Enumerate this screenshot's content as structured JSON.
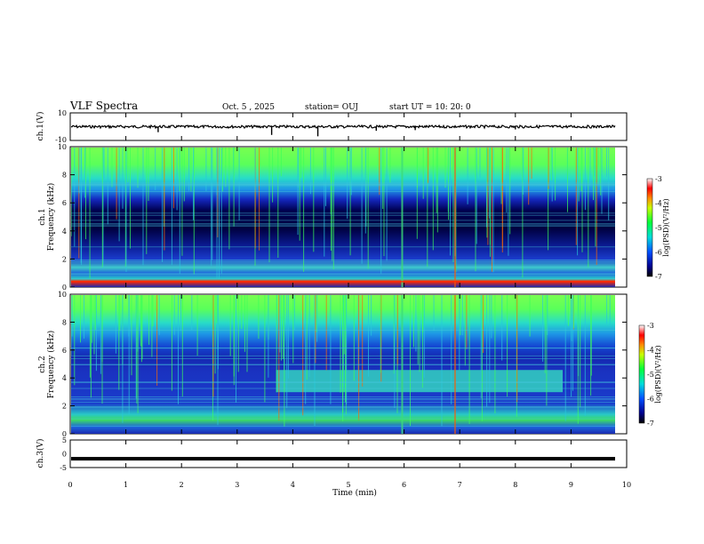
{
  "header": {
    "title": "VLF Spectra",
    "date": "Oct. 5 , 2025",
    "station": "station= OUJ",
    "start": "start  UT  =   10: 20: 0"
  },
  "colors": {
    "spec_low": "#00003c",
    "spec_mid": "#1e3cdc",
    "spec_band": "#28c8c8",
    "spec_high": "#3cff3c",
    "spec_peak": "#ff3200"
  },
  "chart_data": [
    {
      "type": "line",
      "panel": "ch1-waveform",
      "ylabel": "ch.1(V)",
      "ylim": [
        -10,
        10
      ],
      "yticks": [
        "10",
        "-10"
      ],
      "xlim": [
        0,
        10
      ],
      "baseline_value": 0,
      "spikes": [
        {
          "t": 1.58,
          "v": -4
        },
        {
          "t": 3.62,
          "v": -6
        },
        {
          "t": 4.45,
          "v": -7
        },
        {
          "t": 5.5,
          "v": -3
        },
        {
          "t": 6.2,
          "v": -2.5
        },
        {
          "t": 8.0,
          "v": -2
        }
      ]
    },
    {
      "type": "heatmap",
      "panel": "ch1-spectrogram",
      "ylabel": "ch.1\nFrequency  (kHz)",
      "ylim": [
        0,
        10
      ],
      "yticks": [
        "0",
        "2",
        "4",
        "6",
        "8",
        "10"
      ],
      "xlim": [
        0,
        10
      ],
      "colorbar": {
        "label": "log(PSD)(V²/Hz)",
        "range": [
          -7,
          -3
        ],
        "ticks": [
          "-3",
          "-4",
          "-5",
          "-6",
          "-7"
        ]
      }
    },
    {
      "type": "heatmap",
      "panel": "ch2-spectrogram",
      "ylabel": "ch.2\nFrequency  (kHz)",
      "ylim": [
        0,
        10
      ],
      "yticks": [
        "0",
        "2",
        "4",
        "6",
        "8",
        "10"
      ],
      "xlim": [
        0,
        10
      ],
      "enhanced_band": {
        "t_start": 3.7,
        "t_end": 8.85,
        "f_low": 3.0,
        "f_high": 4.6
      },
      "colorbar": {
        "label": "log(PSD)(V²/Hz)",
        "range": [
          -7,
          -3
        ],
        "ticks": [
          "-3",
          "-4",
          "-5",
          "-6",
          "-7"
        ]
      }
    },
    {
      "type": "line",
      "panel": "ch3-waveform",
      "ylabel": "ch.3(V)",
      "ylim": [
        -5,
        5
      ],
      "yticks": [
        "5",
        "0",
        "-5"
      ],
      "xlim": [
        0,
        10
      ],
      "baseline_value": -1.8
    }
  ],
  "xaxis": {
    "label": "Time  (min)",
    "ticks": [
      "0",
      "1",
      "2",
      "3",
      "4",
      "5",
      "6",
      "7",
      "8",
      "9",
      "10"
    ]
  }
}
